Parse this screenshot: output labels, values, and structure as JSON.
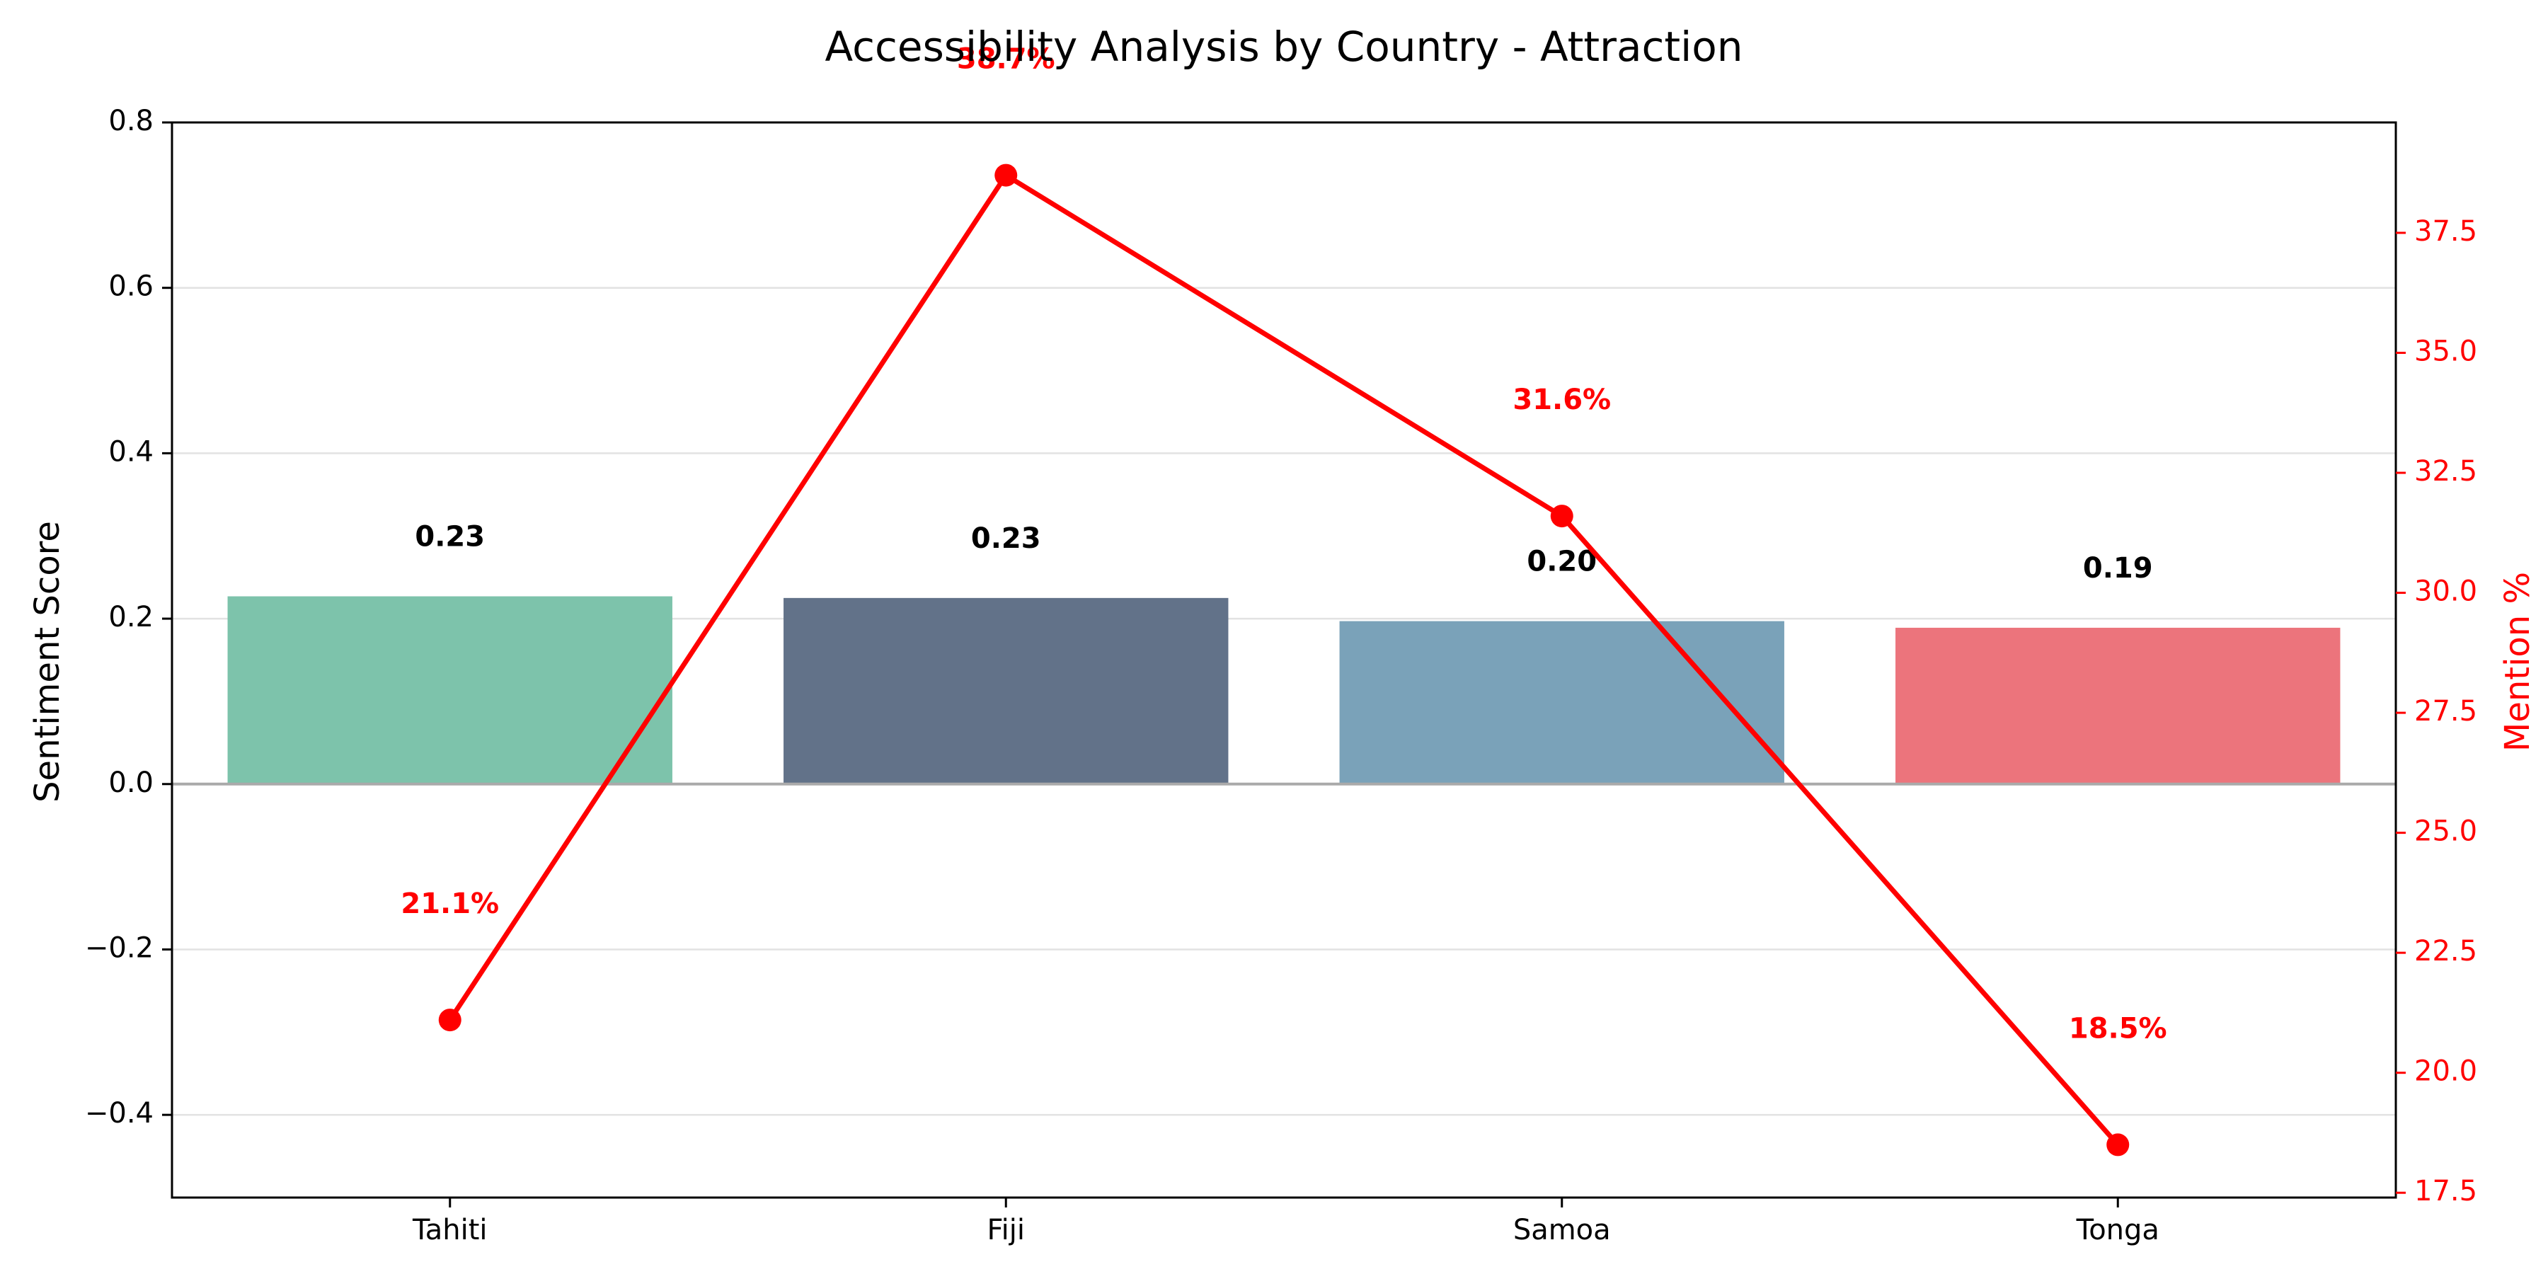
{
  "chart_data": {
    "type": "bar",
    "title": "Accessibility Analysis by Country - Attraction",
    "xlabel": "",
    "ylabel": "Sentiment Score",
    "y2label": "Mention %",
    "categories": [
      "Tahiti",
      "Fiji",
      "Samoa",
      "Tonga"
    ],
    "ylim": [
      -0.5,
      0.8
    ],
    "y_ticks": [
      -0.4,
      -0.2,
      0.0,
      0.2,
      0.4,
      0.6,
      0.8
    ],
    "y_tick_labels": [
      "−0.4",
      "−0.2",
      "0.0",
      "0.2",
      "0.4",
      "0.6",
      "0.8"
    ],
    "y2lim": [
      17.4,
      39.8
    ],
    "y2_ticks": [
      17.5,
      20.0,
      22.5,
      25.0,
      27.5,
      30.0,
      32.5,
      35.0,
      37.5
    ],
    "y2_tick_labels": [
      "17.5",
      "20.0",
      "22.5",
      "25.0",
      "27.5",
      "30.0",
      "32.5",
      "35.0",
      "37.5"
    ],
    "grid": true,
    "series": [
      {
        "type": "bar",
        "axis": "left",
        "values": [
          0.227,
          0.225,
          0.197,
          0.189
        ],
        "labels": [
          "0.23",
          "0.23",
          "0.20",
          "0.19"
        ],
        "colors": [
          "#7dc3ab",
          "#627289",
          "#7aa2b9",
          "#ec747c"
        ]
      },
      {
        "type": "line",
        "axis": "right",
        "values": [
          21.1,
          38.7,
          31.6,
          18.5
        ],
        "labels": [
          "21.1%",
          "38.7%",
          "31.6%",
          "18.5%"
        ],
        "color": "#ff0000"
      }
    ]
  }
}
